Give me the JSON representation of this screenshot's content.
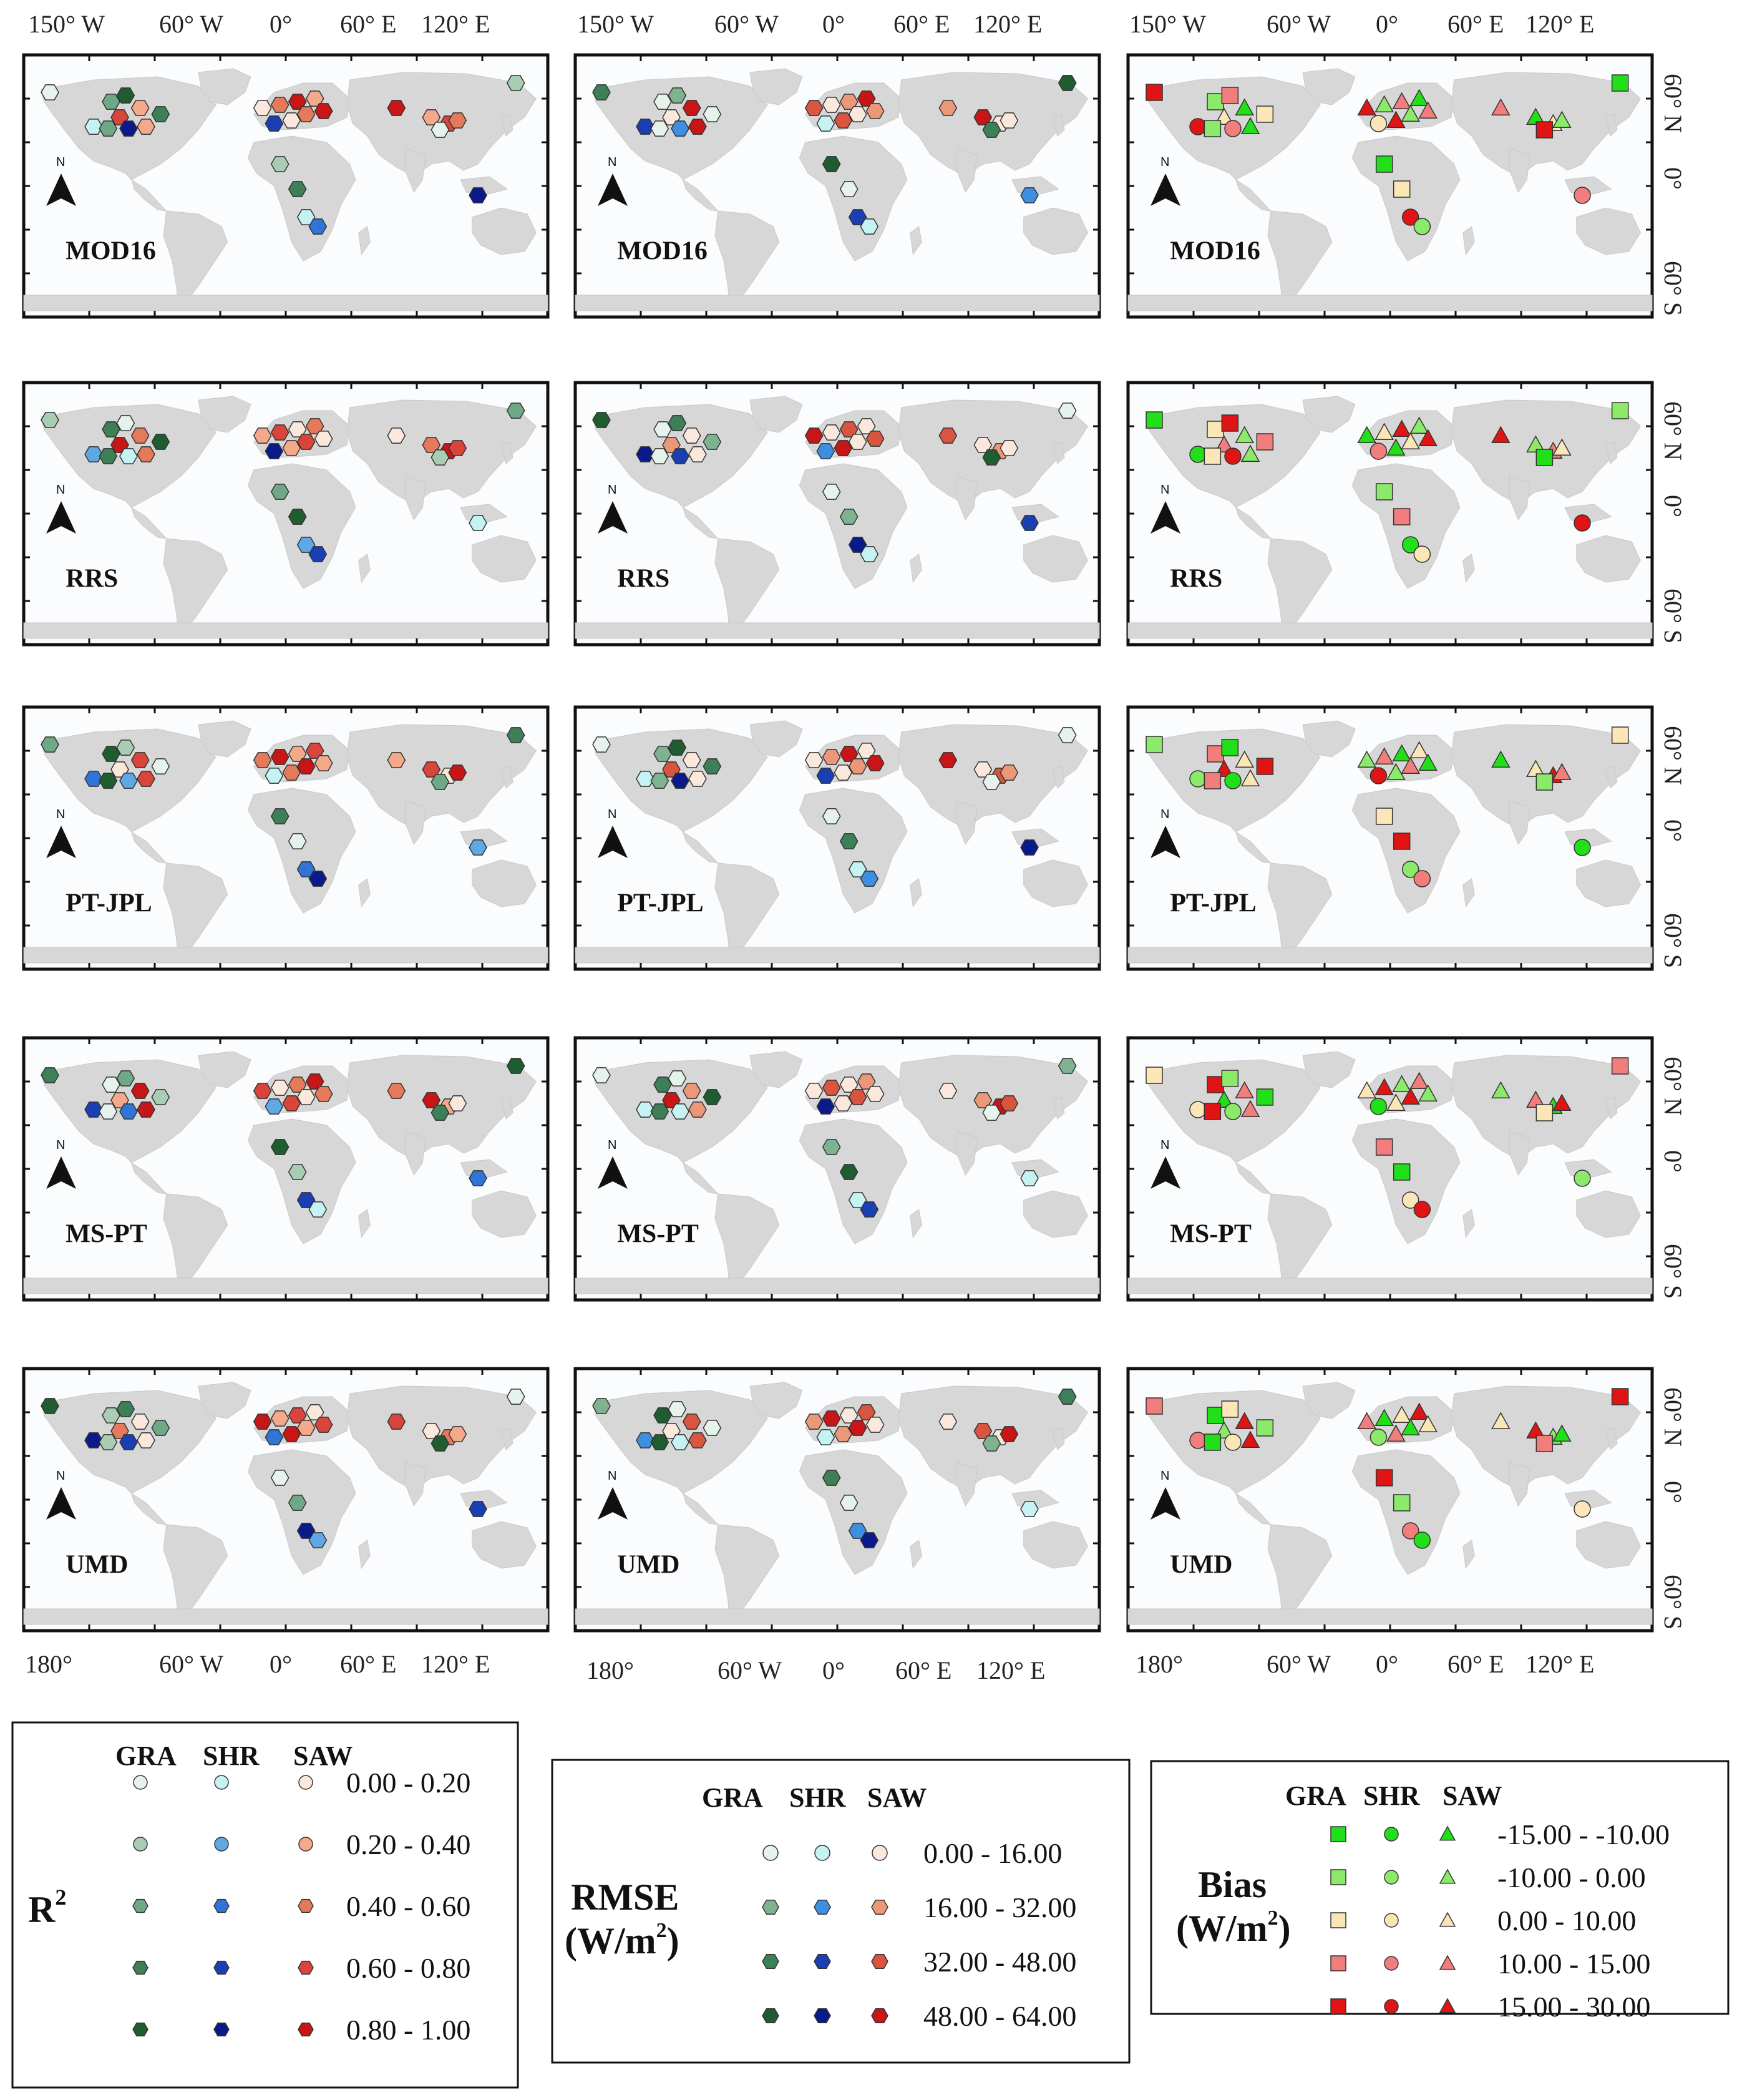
{
  "top_lon_labels": [
    "150° W",
    "60° W",
    "0°",
    "60° E",
    "120° E"
  ],
  "bottom_lon_labels": [
    "180°",
    "60° W",
    "0°",
    "60° E",
    "120° E"
  ],
  "lat_labels": [
    "60° N",
    "0°",
    "60° S"
  ],
  "north_label": "N",
  "models": [
    "MOD16",
    "RRS",
    "PT-JPL",
    "MS-PT",
    "UMD"
  ],
  "legend_r2": {
    "title": "R",
    "title_sup": "2",
    "headers": [
      "GRA",
      "SHR",
      "SAW"
    ],
    "ranges": [
      "0.00 - 0.20",
      "0.20 - 0.40",
      "0.40 - 0.60",
      "0.60 - 0.80",
      "0.80 - 1.00"
    ],
    "colors": {
      "GRA": [
        "#e6f3ec",
        "#a9cdb2",
        "#6fa884",
        "#3d7f56",
        "#1f5d31"
      ],
      "SHR": [
        "#c5f2f2",
        "#5fa8e6",
        "#2f74d6",
        "#1a3fb3",
        "#0a1a8a"
      ],
      "SAW": [
        "#fbe8dc",
        "#f3a98a",
        "#e57a5b",
        "#d9453a",
        "#c81515"
      ]
    }
  },
  "legend_rmse": {
    "title_line1": "RMSE",
    "title_line2": "(W/m",
    "title_sup": "2",
    "title_end": ")",
    "headers": [
      "GRA",
      "SHR",
      "SAW"
    ],
    "ranges": [
      "0.00  - 16.00",
      "16.00 - 32.00",
      "32.00 - 48.00",
      "48.00 - 64.00"
    ],
    "colors": {
      "GRA": [
        "#e6f3ec",
        "#7fb38f",
        "#3d7f56",
        "#1f5d31"
      ],
      "SHR": [
        "#c5f2f2",
        "#3f8fe0",
        "#1a3fb3",
        "#0a1a8a"
      ],
      "SAW": [
        "#fbe8dc",
        "#eb9878",
        "#d9553f",
        "#c81515"
      ]
    }
  },
  "legend_bias": {
    "title_line1": "Bias",
    "title_line2": "(W/m",
    "title_sup": "2",
    "title_end": ")",
    "headers": [
      "GRA",
      "SHR",
      "SAW"
    ],
    "ranges": [
      "-15.00 - -10.00",
      "-10.00 -  0.00",
      "0.00 - 10.00",
      "10.00 - 15.00",
      "15.00 - 30.00"
    ],
    "colors": [
      "#21e01a",
      "#8cea6a",
      "#fbe6b7",
      "#f27d7d",
      "#e01414"
    ]
  },
  "ocean_color": "#fbfcfe",
  "land_color": "#d7d7d7"
}
